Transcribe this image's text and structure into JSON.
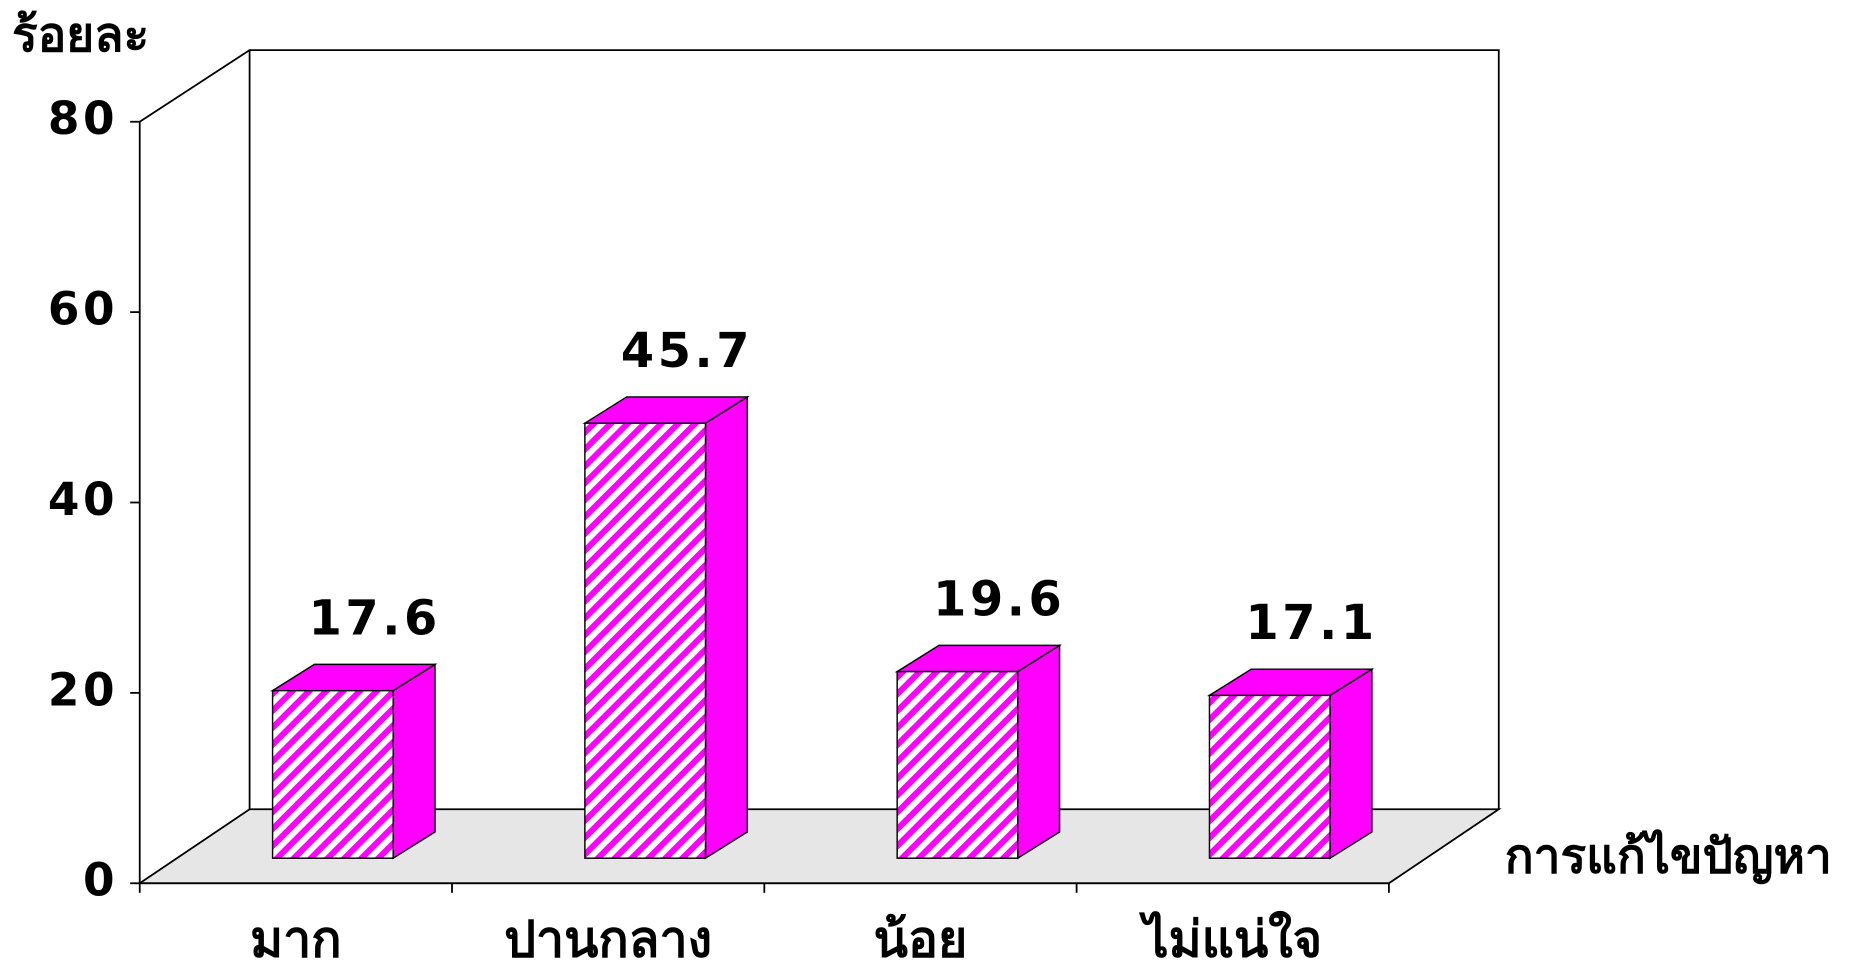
{
  "chart_data": {
    "type": "bar3d",
    "y_label": "ร้อยละ",
    "x_label": "การแก้ไขปัญหา",
    "categories": [
      "มาก",
      "ปานกลาง",
      "น้อย",
      "ไม่แน่ใจ"
    ],
    "values": [
      17.6,
      45.7,
      19.6,
      17.1
    ],
    "color": "#ff00ff",
    "ylim": [
      0,
      80
    ],
    "yticks": [
      0,
      20,
      40,
      60,
      80
    ]
  }
}
